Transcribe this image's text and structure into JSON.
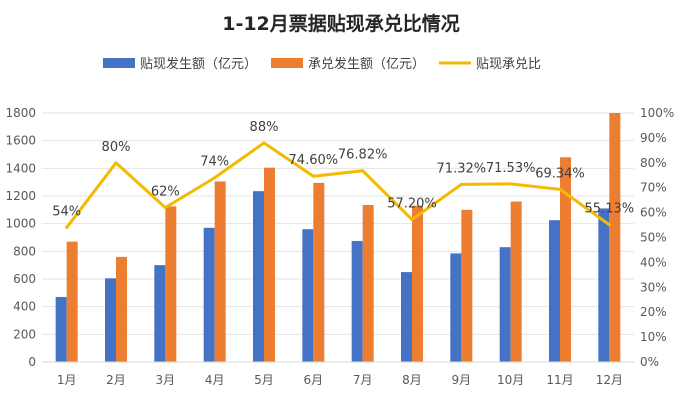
{
  "chart_data": {
    "type": "bar",
    "title": "1-12月票据贴现承兑比情况",
    "categories": [
      "1月",
      "2月",
      "3月",
      "4月",
      "5月",
      "6月",
      "7月",
      "8月",
      "9月",
      "10月",
      "11月",
      "12月"
    ],
    "series": [
      {
        "name": "贴现发生额（亿元）",
        "type": "bar",
        "axis": "left",
        "color": "#4472C4",
        "values": [
          470,
          605,
          700,
          970,
          1235,
          960,
          875,
          650,
          785,
          830,
          1025,
          1110
        ]
      },
      {
        "name": "承兑发生额（亿元）",
        "type": "bar",
        "axis": "left",
        "color": "#ED7D31",
        "values": [
          870,
          760,
          1125,
          1305,
          1405,
          1295,
          1135,
          1130,
          1100,
          1160,
          1480,
          1800
        ]
      },
      {
        "name": "贴现承兑比",
        "type": "line",
        "axis": "right",
        "color": "#F2BA00",
        "values": [
          54,
          80,
          62,
          74,
          88,
          74.6,
          76.82,
          57.2,
          71.32,
          71.53,
          69.34,
          55.13
        ],
        "labels": [
          "54%",
          "80%",
          "62%",
          "74%",
          "88%",
          "74.60%",
          "76.82%",
          "57.20%",
          "71.32%",
          "71.53%",
          "69.34%",
          "55.13%"
        ]
      }
    ],
    "y_left": {
      "min": 0,
      "max": 1800,
      "step": 200,
      "ticks": [
        "0",
        "200",
        "400",
        "600",
        "800",
        "1000",
        "1200",
        "1400",
        "1600",
        "1800"
      ]
    },
    "y_right": {
      "min": 0,
      "max": 100,
      "step": 10,
      "ticks": [
        "0%",
        "10%",
        "20%",
        "30%",
        "40%",
        "50%",
        "60%",
        "70%",
        "80%",
        "90%",
        "100%"
      ]
    },
    "grid": true,
    "legend_position": "top"
  }
}
